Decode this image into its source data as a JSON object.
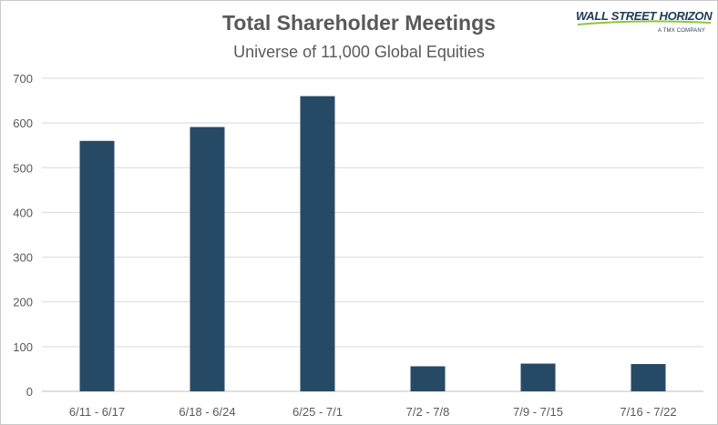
{
  "logo": {
    "name": "WALL STREET HORIZON",
    "tagline": "A TMX COMPANY",
    "accent": "#8dc63f",
    "navy": "#1f3b57"
  },
  "chart_data": {
    "type": "bar",
    "title": "Total Shareholder Meetings",
    "subtitle": "Universe of 11,000 Global Equities",
    "categories": [
      "6/11 - 6/17",
      "6/18 - 6/24",
      "6/25 - 7/1",
      "7/2 - 7/8",
      "7/9 - 7/15",
      "7/16 - 7/22"
    ],
    "values": [
      560,
      591,
      660,
      56,
      62,
      61
    ],
    "ylim": [
      0,
      700
    ],
    "yticks": [
      0,
      100,
      200,
      300,
      400,
      500,
      600,
      700
    ],
    "grid": true,
    "legend": "none",
    "bar_color": "#264a66",
    "grid_color": "#d9d9d9",
    "text_color": "#595959"
  }
}
